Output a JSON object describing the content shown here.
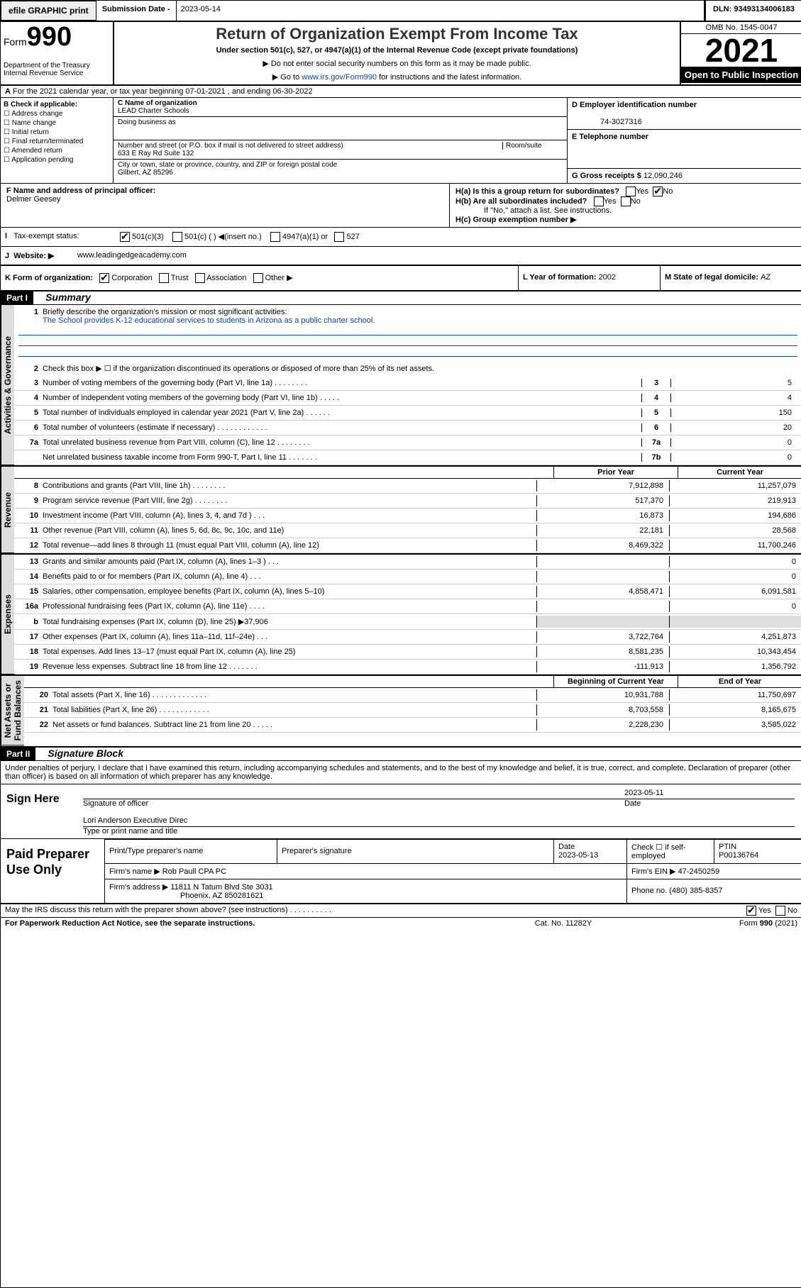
{
  "topbar": {
    "efile": "efile GRAPHIC print",
    "submlabel": "Submission Date - ",
    "submdate": "2023-05-14",
    "dln": "DLN: 93493134006183"
  },
  "header": {
    "form": "Form",
    "n990": "990",
    "title": "Return of Organization Exempt From Income Tax",
    "sub": "Under section 501(c), 527, or 4947(a)(1) of the Internal Revenue Code (except private foundations)",
    "arrow1": "▶ Do not enter social security numbers on this form as it may be made public.",
    "arrow2": "▶ Go to ",
    "link": "www.irs.gov/Form990",
    "arrow2b": " for instructions and the latest information.",
    "dept": "Department of the Treasury\nInternal Revenue Service",
    "omb": "OMB No. 1545-0047",
    "year": "2021",
    "open": "Open to Public Inspection"
  },
  "A": {
    "txt": "For the 2021 calendar year, or tax year beginning 07-01-2021    , and ending 06-30-2022"
  },
  "B": {
    "hdr": "B Check if applicable:",
    "items": [
      "Address change",
      "Name change",
      "Initial return",
      "Final return/terminated",
      "Amended return",
      "Application pending"
    ]
  },
  "C": {
    "namelabel": "C Name of organization",
    "name": "LEAD Charter Schools",
    "dba": "Doing business as",
    "streetlabel": "Number and street (or P.O. box if mail is not delivered to street address)",
    "room": "Room/suite",
    "street": "633 E Ray Rd Suite 132",
    "citylabel": "City or town, state or province, country, and ZIP or foreign postal code",
    "city": "Gilbert, AZ  85296"
  },
  "D": {
    "label": "D Employer identification number",
    "val": "74-3027316"
  },
  "E": {
    "label": "E Telephone number",
    "val": ""
  },
  "G": {
    "label": "G Gross receipts $",
    "val": "12,090,246"
  },
  "F": {
    "label": "F  Name and address of principal officer:",
    "val": "Delmer Geesey"
  },
  "H": {
    "a": "H(a)  Is this a group return for subordinates?",
    "aYes": "Yes",
    "aNo": "No",
    "b": "H(b)  Are all subordinates included?",
    "bYes": "Yes",
    "bNo": "No",
    "bnote": "If \"No,\" attach a list. See instructions.",
    "c": "H(c)  Group exemption number ▶"
  },
  "I": {
    "label": "Tax-exempt status:",
    "o1": "501(c)(3)",
    "o2": "501(c) (  ) ◀(insert no.)",
    "o3": "4947(a)(1) or",
    "o4": "527"
  },
  "J": {
    "label": "Website: ▶",
    "val": "www.leadingedgeacademy.com"
  },
  "K": {
    "label": "K Form of organization:",
    "o1": "Corporation",
    "o2": "Trust",
    "o3": "Association",
    "o4": "Other ▶"
  },
  "L": {
    "label": "L Year of formation: ",
    "val": "2002"
  },
  "M": {
    "label": "M State of legal domicile: ",
    "val": "AZ"
  },
  "part1": {
    "label": "Part I",
    "title": "Summary"
  },
  "vtabs": {
    "ag": "Activities & Governance",
    "rev": "Revenue",
    "exp": "Expenses",
    "na": "Net Assets or\nFund Balances"
  },
  "ag": {
    "l1": "Briefly describe the organization's mission or most significant activities:",
    "mission": "The School provides K-12 educational services to students in Arizona as a public charter school.",
    "l2": "Check this box ▶ ☐  if the organization discontinued its operations or disposed of more than 25% of its net assets.",
    "rows": [
      {
        "n": "3",
        "t": "Number of voting members of the governing body (Part VI, line 1a)   .    .    .    .    .    .    .    .",
        "nc": "3",
        "v": "5"
      },
      {
        "n": "4",
        "t": "Number of independent voting members of the governing body (Part VI, line 1b)   .    .    .    .    .",
        "nc": "4",
        "v": "4"
      },
      {
        "n": "5",
        "t": "Total number of individuals employed in calendar year 2021 (Part V, line 2a)   .    .    .    .    .    .",
        "nc": "5",
        "v": "150"
      },
      {
        "n": "6",
        "t": "Total number of volunteers (estimate if necessary)    .    .    .    .    .    .    .    .    .    .    .    .",
        "nc": "6",
        "v": "20"
      },
      {
        "n": "7a",
        "t": "Total unrelated business revenue from Part VIII, column (C), line 12   .    .    .    .    .    .    .    .",
        "nc": "7a",
        "v": "0"
      },
      {
        "n": "",
        "t": "Net unrelated business taxable income from Form 990-T, Part I, line 11   .    .    .    .    .    .    .",
        "nc": "7b",
        "v": "0"
      }
    ]
  },
  "twoColHead": {
    "c1": "Prior Year",
    "c2": "Current Year"
  },
  "rev": [
    {
      "n": "8",
      "t": "Contributions and grants (Part VIII, line 1h)    .    .    .    .    .    .    .    .",
      "c1": "7,912,898",
      "c2": "11,257,079"
    },
    {
      "n": "9",
      "t": "Program service revenue (Part VIII, line 2g)   .    .    .    .    .    .    .    .",
      "c1": "517,370",
      "c2": "219,913"
    },
    {
      "n": "10",
      "t": "Investment income (Part VIII, column (A), lines 3, 4, and 7d )    .    .    .",
      "c1": "16,873",
      "c2": "194,686"
    },
    {
      "n": "11",
      "t": "Other revenue (Part VIII, column (A), lines 5, 6d, 8c, 9c, 10c, and 11e)",
      "c1": "22,181",
      "c2": "28,568"
    },
    {
      "n": "12",
      "t": "Total revenue—add lines 8 through 11 (must equal Part VIII, column (A), line 12)",
      "c1": "8,469,322",
      "c2": "11,700,246"
    }
  ],
  "exp": [
    {
      "n": "13",
      "t": "Grants and similar amounts paid (Part IX, column (A), lines 1–3 )   .    .    .",
      "c1": "",
      "c2": "0"
    },
    {
      "n": "14",
      "t": "Benefits paid to or for members (Part IX, column (A), line 4)   .    .    .",
      "c1": "",
      "c2": "0"
    },
    {
      "n": "15",
      "t": "Salaries, other compensation, employee benefits (Part IX, column (A), lines 5–10)",
      "c1": "4,858,471",
      "c2": "6,091,581"
    },
    {
      "n": "16a",
      "t": "Professional fundraising fees (Part IX, column (A), line 11e)   .    .    .    .",
      "c1": "",
      "c2": "0"
    },
    {
      "n": "b",
      "t": "Total fundraising expenses (Part IX, column (D), line 25) ▶37,906",
      "c1": "SHADE",
      "c2": "SHADE"
    },
    {
      "n": "17",
      "t": "Other expenses (Part IX, column (A), lines 11a–11d, 11f–24e)   .    .    .",
      "c1": "3,722,764",
      "c2": "4,251,873"
    },
    {
      "n": "18",
      "t": "Total expenses. Add lines 13–17 (must equal Part IX, column (A), line 25)",
      "c1": "8,581,235",
      "c2": "10,343,454"
    },
    {
      "n": "19",
      "t": "Revenue less expenses. Subtract line 18 from line 12 .    .    .    .    .    .    .",
      "c1": "-111,913",
      "c2": "1,356,792"
    }
  ],
  "naHead": {
    "c1": "Beginning of Current Year",
    "c2": "End of Year"
  },
  "na": [
    {
      "n": "20",
      "t": "Total assets (Part X, line 16)   .    .    .    .    .    .    .    .    .    .    .    .    .",
      "c1": "10,931,788",
      "c2": "11,750,697"
    },
    {
      "n": "21",
      "t": "Total liabilities (Part X, line 26)   .    .    .    .    .    .    .    .    .    .    .    .",
      "c1": "8,703,558",
      "c2": "8,165,675"
    },
    {
      "n": "22",
      "t": "Net assets or fund balances. Subtract line 21 from line 20 .    .    .    .    .",
      "c1": "2,228,230",
      "c2": "3,585,022"
    }
  ],
  "part2": {
    "label": "Part II",
    "title": "Signature Block"
  },
  "decl": "Under penalties of perjury, I declare that I have examined this return, including accompanying schedules and statements, and to the best of my knowledge and belief, it is true, correct, and complete. Declaration of preparer (other than officer) is based on all information of which preparer has any knowledge.",
  "sign": {
    "here": "Sign Here",
    "sigoff": "Signature of officer",
    "date": "Date",
    "sigdate": "2023-05-11",
    "name": "Lori Anderson  Executive Direc",
    "typed": "Type or print name and title"
  },
  "paid": {
    "label": "Paid Preparer Use Only",
    "h1": "Print/Type preparer's name",
    "h2": "Preparer's signature",
    "h3": "Date",
    "h3v": "2023-05-13",
    "h4": "Check ☐ if self-employed",
    "h5": "PTIN",
    "h5v": "P00136764",
    "fn": "Firm's name      ▶ ",
    "fnv": "Rob Paull CPA PC",
    "ein": "Firm's EIN ▶ ",
    "einv": "47-2450259",
    "fa": "Firm's address ▶ ",
    "fav1": "11811 N Tatum Blvd Ste 3031",
    "fav2": "Phoenix, AZ  850281621",
    "ph": "Phone no. ",
    "phv": "(480) 385-8357"
  },
  "foot": {
    "q": "May the IRS discuss this return with the preparer shown above? (see instructions)    .    .    .    .    .    .    .    .    .    .",
    "yes": "Yes",
    "no": "No"
  },
  "bottom": {
    "pra": "For Paperwork Reduction Act Notice, see the separate instructions.",
    "cat": "Cat. No. 11282Y",
    "form": "Form 990 (2021)"
  }
}
